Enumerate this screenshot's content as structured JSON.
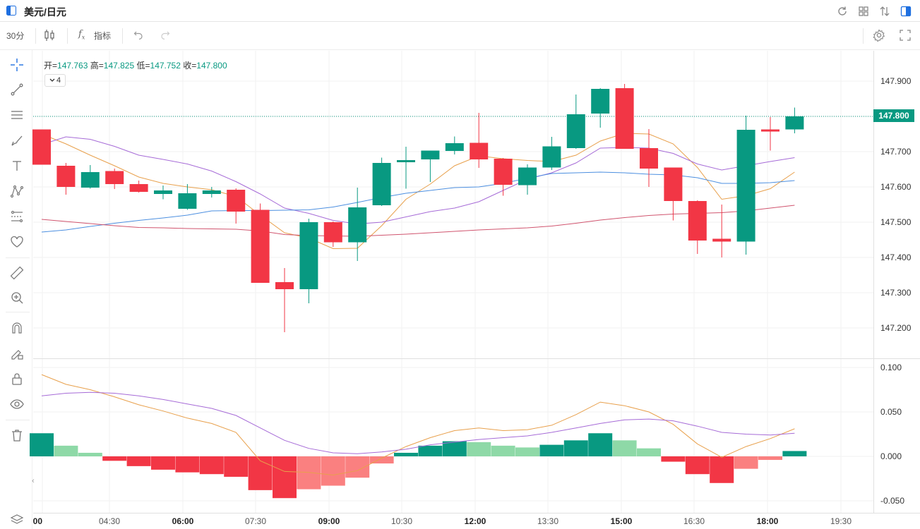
{
  "title": "美元/日元",
  "toolbar": {
    "interval": "30分",
    "indicator_label": "指标"
  },
  "legend": {
    "open_label": "开=",
    "open": "147.763",
    "high_label": "高=",
    "high": "147.825",
    "low_label": "低=",
    "low": "147.752",
    "close_label": "收=",
    "close": "147.800"
  },
  "indicator_toggle": "4",
  "last_price": "147.800",
  "colors": {
    "up": "#089981",
    "down": "#F23645",
    "up_light": "#8ED9A7",
    "down_light": "#FA8080",
    "ma5": "#E8A04C",
    "ma10": "#A66BD7",
    "ma20": "#4C8FE0",
    "ma60": "#D0546E",
    "macd_dif": "#E8A04C",
    "macd_dea": "#A66BD7"
  },
  "icons": {
    "top": [
      "refresh-icon",
      "grid-icon",
      "sort-icon",
      "panel-icon"
    ],
    "left": [
      "crosshair-icon",
      "line-icon",
      "parallel-icon",
      "brush-icon",
      "text-icon",
      "pattern-icon",
      "fib-icon",
      "favorite-icon",
      "ruler-icon",
      "zoom-icon",
      "magnet-icon",
      "pencil-lock-icon",
      "lock-icon",
      "eye-icon",
      "trash-icon",
      "layers-icon"
    ]
  },
  "chart_data": {
    "type": "candlestick",
    "x_ticks": [
      "00",
      "04:30",
      "06:00",
      "07:30",
      "09:00",
      "10:30",
      "12:00",
      "13:30",
      "15:00",
      "16:30",
      "18:00",
      "19:30"
    ],
    "y_ticks": [
      "147.900",
      "147.800",
      "147.700",
      "147.600",
      "147.500",
      "147.400",
      "147.300",
      "147.200"
    ],
    "ylim": [
      147.145,
      147.97
    ],
    "candles": [
      {
        "o": 147.763,
        "h": 147.763,
        "l": 147.663,
        "c": 147.663
      },
      {
        "o": 147.66,
        "h": 147.668,
        "l": 147.578,
        "c": 147.6
      },
      {
        "o": 147.598,
        "h": 147.662,
        "l": 147.595,
        "c": 147.642
      },
      {
        "o": 147.645,
        "h": 147.652,
        "l": 147.594,
        "c": 147.608
      },
      {
        "o": 147.608,
        "h": 147.618,
        "l": 147.584,
        "c": 147.586
      },
      {
        "o": 147.58,
        "h": 147.604,
        "l": 147.565,
        "c": 147.59
      },
      {
        "o": 147.538,
        "h": 147.608,
        "l": 147.535,
        "c": 147.582
      },
      {
        "o": 147.58,
        "h": 147.6,
        "l": 147.57,
        "c": 147.59
      },
      {
        "o": 147.592,
        "h": 147.596,
        "l": 147.496,
        "c": 147.53
      },
      {
        "o": 147.535,
        "h": 147.553,
        "l": 147.328,
        "c": 147.328
      },
      {
        "o": 147.33,
        "h": 147.37,
        "l": 147.188,
        "c": 147.31
      },
      {
        "o": 147.31,
        "h": 147.51,
        "l": 147.27,
        "c": 147.5
      },
      {
        "o": 147.5,
        "h": 147.502,
        "l": 147.43,
        "c": 147.443
      },
      {
        "o": 147.443,
        "h": 147.598,
        "l": 147.39,
        "c": 147.542
      },
      {
        "o": 147.548,
        "h": 147.683,
        "l": 147.546,
        "c": 147.668
      },
      {
        "o": 147.67,
        "h": 147.714,
        "l": 147.595,
        "c": 147.676
      },
      {
        "o": 147.678,
        "h": 147.702,
        "l": 147.614,
        "c": 147.703
      },
      {
        "o": 147.702,
        "h": 147.743,
        "l": 147.692,
        "c": 147.724
      },
      {
        "o": 147.725,
        "h": 147.81,
        "l": 147.654,
        "c": 147.678
      },
      {
        "o": 147.68,
        "h": 147.682,
        "l": 147.575,
        "c": 147.606
      },
      {
        "o": 147.605,
        "h": 147.664,
        "l": 147.578,
        "c": 147.655
      },
      {
        "o": 147.655,
        "h": 147.742,
        "l": 147.648,
        "c": 147.715
      },
      {
        "o": 147.71,
        "h": 147.862,
        "l": 147.708,
        "c": 147.806
      },
      {
        "o": 147.808,
        "h": 147.88,
        "l": 147.768,
        "c": 147.878
      },
      {
        "o": 147.88,
        "h": 147.892,
        "l": 147.708,
        "c": 147.708
      },
      {
        "o": 147.71,
        "h": 147.764,
        "l": 147.6,
        "c": 147.652
      },
      {
        "o": 147.655,
        "h": 147.655,
        "l": 147.505,
        "c": 147.56
      },
      {
        "o": 147.56,
        "h": 147.562,
        "l": 147.41,
        "c": 147.448
      },
      {
        "o": 147.453,
        "h": 147.55,
        "l": 147.4,
        "c": 147.445
      },
      {
        "o": 147.445,
        "h": 147.802,
        "l": 147.408,
        "c": 147.762
      },
      {
        "o": 147.763,
        "h": 147.798,
        "l": 147.703,
        "c": 147.757
      },
      {
        "o": 147.763,
        "h": 147.825,
        "l": 147.752,
        "c": 147.8
      }
    ],
    "ma_lines": [
      {
        "name": "MA5",
        "values": [
          147.75,
          147.722,
          147.69,
          147.66,
          147.628,
          147.61,
          147.6,
          147.592,
          147.573,
          147.52,
          147.47,
          147.455,
          147.425,
          147.426,
          147.49,
          147.565,
          147.608,
          147.66,
          147.688,
          147.68,
          147.675,
          147.672,
          147.69,
          147.73,
          147.752,
          147.75,
          147.722,
          147.655,
          147.565,
          147.575,
          147.595,
          147.642
        ]
      },
      {
        "name": "MA10",
        "values": [
          147.72,
          147.742,
          147.735,
          147.715,
          147.69,
          147.678,
          147.665,
          147.645,
          147.615,
          147.58,
          147.54,
          147.525,
          147.505,
          147.495,
          147.5,
          147.515,
          147.53,
          147.54,
          147.558,
          147.59,
          147.622,
          147.64,
          147.668,
          147.71,
          147.712,
          147.71,
          147.695,
          147.665,
          147.648,
          147.66,
          147.672,
          147.683
        ]
      },
      {
        "name": "MA20",
        "values": [
          147.472,
          147.478,
          147.488,
          147.497,
          147.505,
          147.512,
          147.52,
          147.532,
          147.533,
          147.533,
          147.534,
          147.535,
          147.543,
          147.556,
          147.57,
          147.582,
          147.59,
          147.598,
          147.6,
          147.61,
          147.625,
          147.638,
          147.64,
          147.642,
          147.64,
          147.636,
          147.634,
          147.626,
          147.61,
          147.61,
          147.612,
          147.618
        ]
      },
      {
        "name": "MA60",
        "values": [
          147.508,
          147.502,
          147.496,
          147.49,
          147.485,
          147.484,
          147.482,
          147.481,
          147.48,
          147.475,
          147.465,
          147.462,
          147.461,
          147.46,
          147.463,
          147.466,
          147.47,
          147.474,
          147.478,
          147.481,
          147.484,
          147.489,
          147.497,
          147.506,
          147.513,
          147.519,
          147.523,
          147.525,
          147.527,
          147.532,
          147.54,
          147.548
        ]
      }
    ],
    "macd": {
      "y_ticks": [
        "0.100",
        "0.050",
        "0.000",
        "-0.050"
      ],
      "ylim": [
        -0.055,
        0.104
      ],
      "hist": [
        0.026,
        0.012,
        0.004,
        -0.005,
        -0.011,
        -0.015,
        -0.018,
        -0.02,
        -0.023,
        -0.038,
        -0.047,
        -0.037,
        -0.033,
        -0.024,
        -0.008,
        0.004,
        0.012,
        0.017,
        0.016,
        0.012,
        0.01,
        0.013,
        0.018,
        0.026,
        0.018,
        0.009,
        -0.006,
        -0.02,
        -0.03,
        -0.014,
        -0.004,
        0.006
      ],
      "dif": [
        0.092,
        0.081,
        0.075,
        0.067,
        0.058,
        0.051,
        0.043,
        0.037,
        0.027,
        -0.005,
        -0.017,
        -0.018,
        -0.021,
        -0.016,
        -0.002,
        0.011,
        0.021,
        0.029,
        0.032,
        0.029,
        0.03,
        0.035,
        0.047,
        0.061,
        0.057,
        0.05,
        0.036,
        0.014,
        -0.001,
        0.011,
        0.02,
        0.031
      ],
      "dea": [
        0.068,
        0.071,
        0.072,
        0.071,
        0.068,
        0.064,
        0.059,
        0.054,
        0.046,
        0.032,
        0.018,
        0.009,
        0.004,
        0.003,
        0.005,
        0.008,
        0.013,
        0.016,
        0.019,
        0.021,
        0.023,
        0.027,
        0.032,
        0.037,
        0.041,
        0.042,
        0.04,
        0.034,
        0.027,
        0.025,
        0.024,
        0.026
      ]
    }
  }
}
